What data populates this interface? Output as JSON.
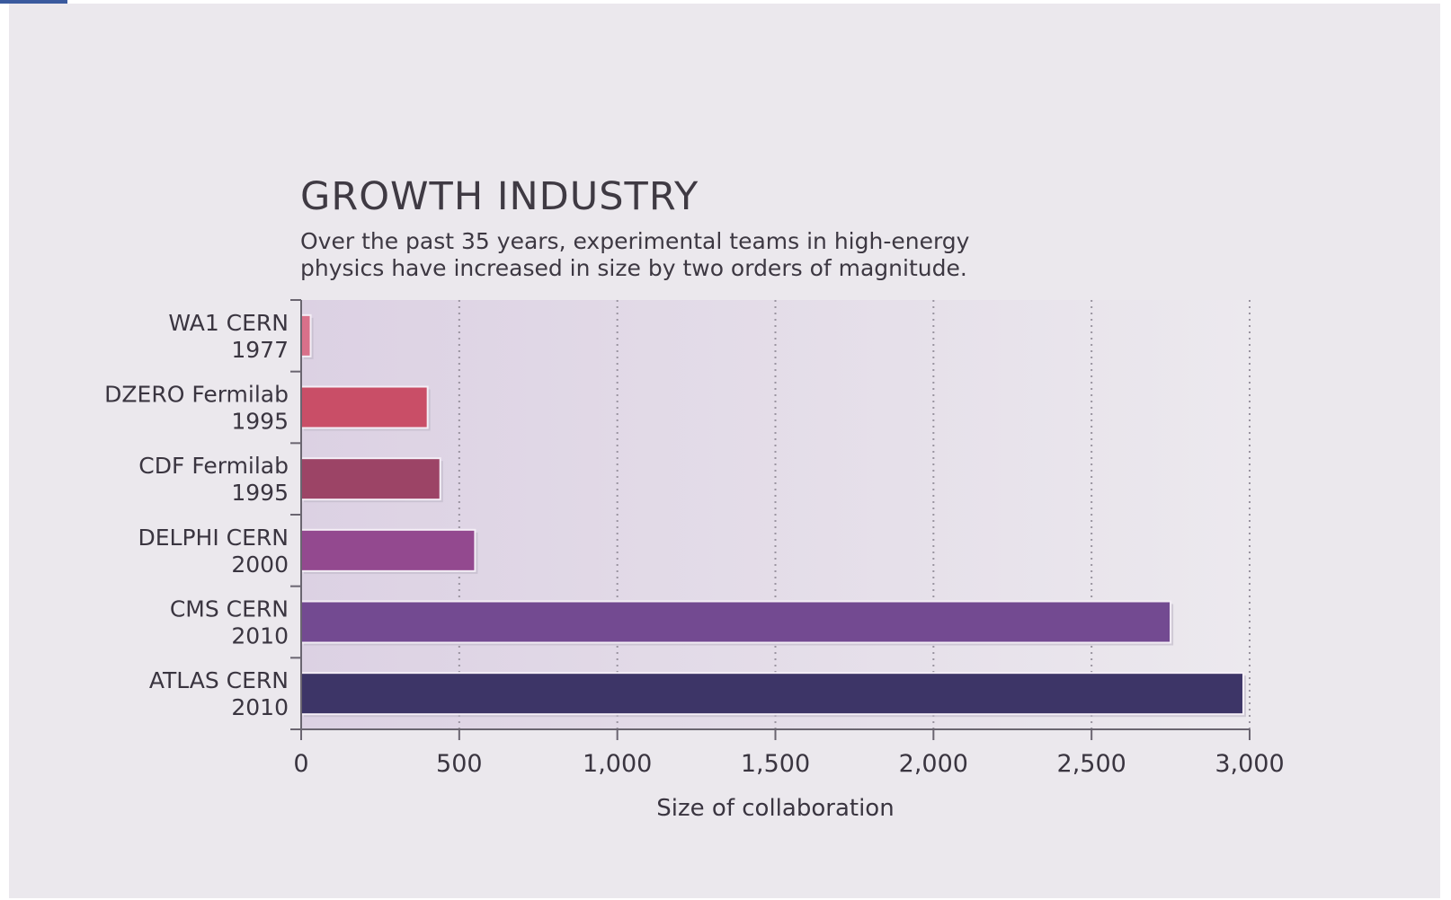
{
  "chart_data": {
    "type": "bar",
    "orientation": "horizontal",
    "title": "GROWTH INDUSTRY",
    "subtitle": "Over the past 35 years, experimental teams in high-energy physics have increased in size by two orders of magnitude.",
    "xlabel": "Size of collaboration",
    "ylabel": "",
    "xlim": [
      0,
      3000
    ],
    "xticks": [
      0,
      500,
      1000,
      1500,
      2000,
      2500,
      3000
    ],
    "xtick_labels": [
      "0",
      "500",
      "1,000",
      "1,500",
      "2,000",
      "2,500",
      "3,000"
    ],
    "grid": "vertical dotted",
    "categories": [
      {
        "name": "WA1 CERN",
        "year": "1977",
        "value": 30,
        "color": "#d9708a"
      },
      {
        "name": "DZERO Fermilab",
        "year": "1995",
        "value": 400,
        "color": "#c94e67"
      },
      {
        "name": "CDF Fermilab",
        "year": "1995",
        "value": 440,
        "color": "#9c4466"
      },
      {
        "name": "DELPHI CERN",
        "year": "2000",
        "value": 550,
        "color": "#93498f"
      },
      {
        "name": "CMS CERN",
        "year": "2010",
        "value": 2750,
        "color": "#734a91"
      },
      {
        "name": "ATLAS CERN",
        "year": "2010",
        "value": 2980,
        "color": "#3d3567"
      }
    ]
  },
  "colors": {
    "background": "#ebe8ed",
    "plot_gradient_start": "#dcd1e3",
    "plot_gradient_end": "#ece9ee",
    "axis": "#6a6570",
    "text": "#3a3540"
  }
}
